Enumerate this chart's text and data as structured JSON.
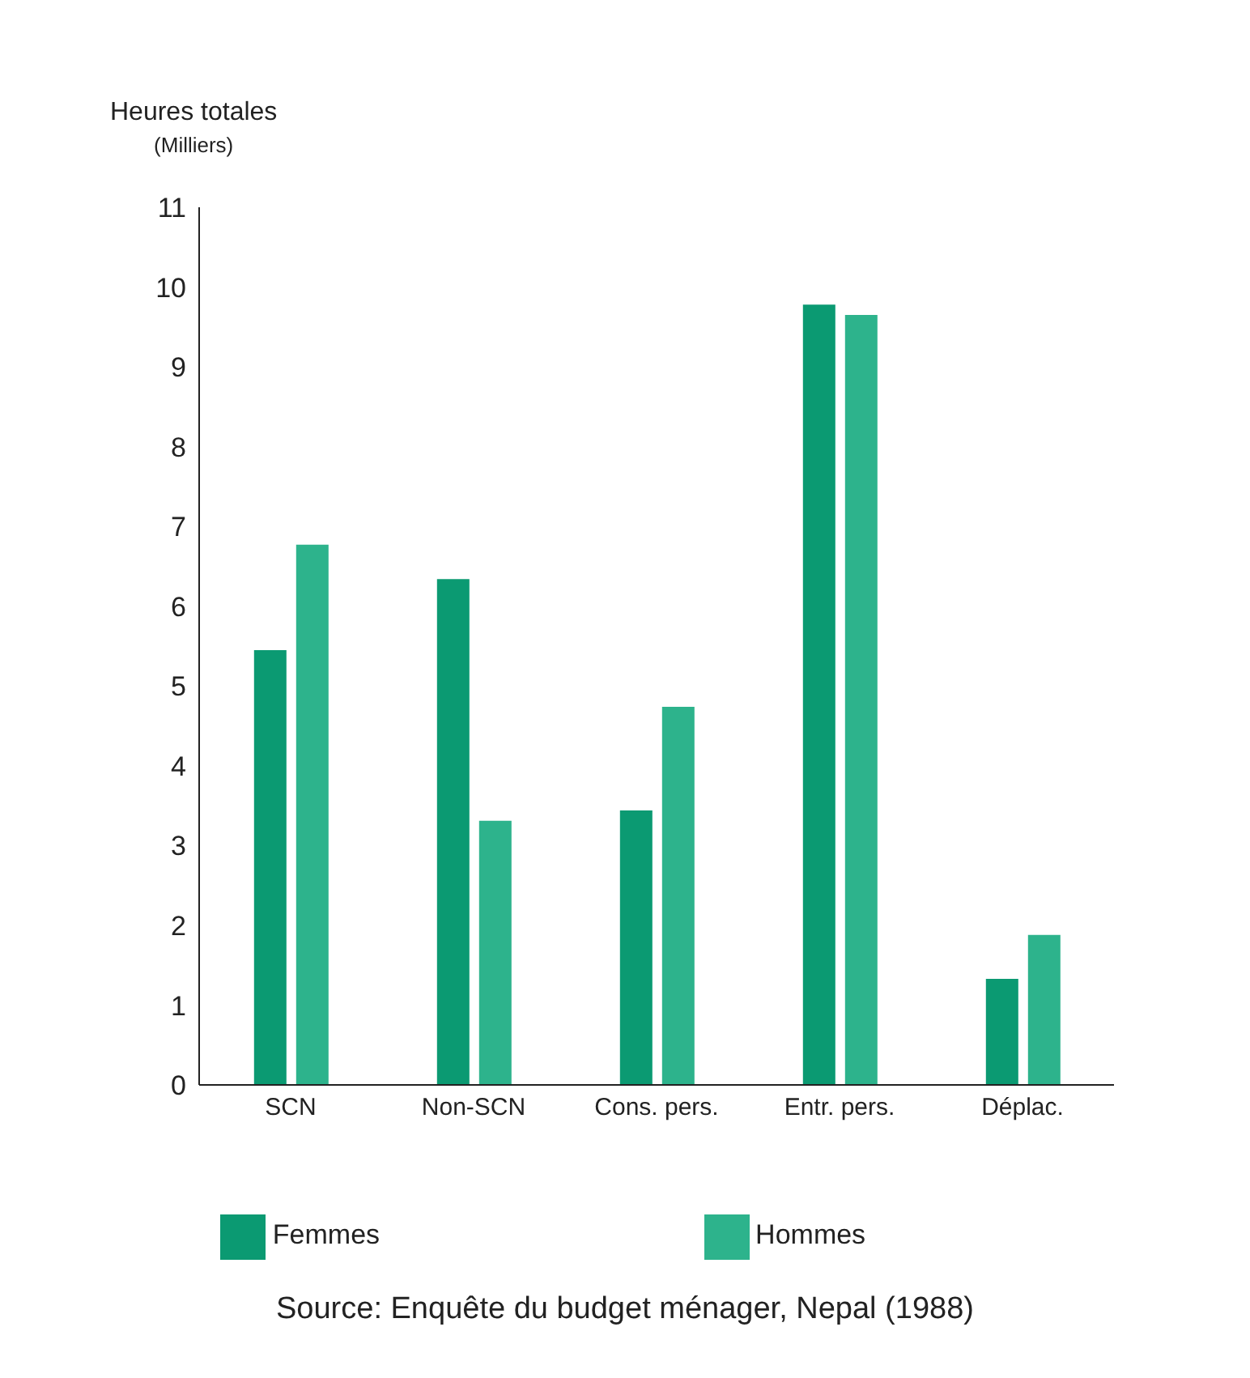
{
  "chart_data": {
    "type": "bar",
    "ylabel": "Heures totales\n(Milliers)",
    "categories": [
      "SCN",
      "Non-SCN",
      "Cons. pers.",
      "Entr. pers.",
      "Déplac."
    ],
    "series": [
      {
        "name": "Femmes",
        "color": "#0b9a72",
        "values": [
          5.45,
          6.34,
          3.44,
          9.78,
          1.33
        ]
      },
      {
        "name": "Hommes",
        "color": "#2db38c",
        "values": [
          6.77,
          3.31,
          4.74,
          9.65,
          1.88
        ]
      }
    ],
    "ylim": [
      0,
      11
    ],
    "yticks": [
      0,
      1,
      2,
      3,
      4,
      5,
      6,
      7,
      8,
      9,
      10,
      11
    ],
    "grid": false,
    "legend": "bottom",
    "annotations": [
      "Source: Enquête du budget ménager, Nepal (1988)"
    ]
  }
}
